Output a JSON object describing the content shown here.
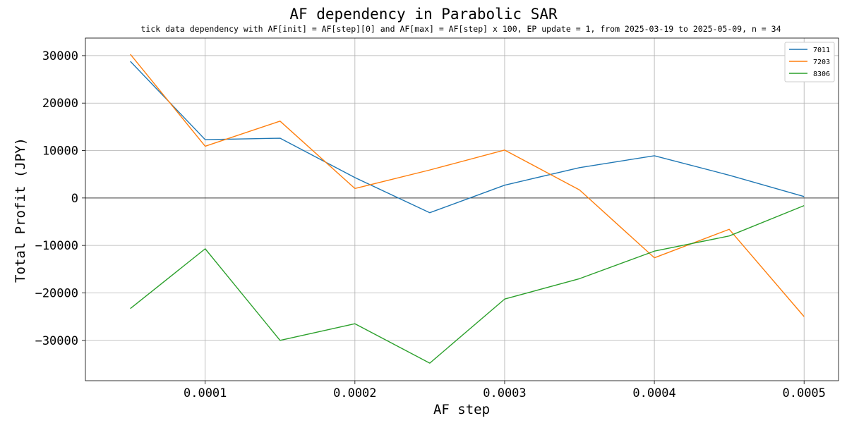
{
  "chart_data": {
    "type": "line",
    "title": "AF dependency in Parabolic SAR",
    "subtitle": "tick data dependency with AF[init] = AF[step][0] and AF[max] = AF[step] x 100, EP update = 1, from 2025-03-19 to 2025-05-09, n = 34",
    "xlabel": "AF step",
    "ylabel": "Total Profit (JPY)",
    "x": [
      5e-05,
      0.0001,
      0.00015,
      0.0002,
      0.00025,
      0.0003,
      0.00035,
      0.0004,
      0.00045,
      0.0005
    ],
    "x_ticks": [
      "0.0001",
      "0.0002",
      "0.0003",
      "0.0004",
      "0.0005"
    ],
    "y_ticks": [
      "30000",
      "20000",
      "10000",
      "0",
      "−10000",
      "−20000",
      "−30000"
    ],
    "xlim": [
      2e-05,
      0.000523
    ],
    "ylim": [
      -38500,
      33700
    ],
    "grid": true,
    "zero_line": true,
    "legend_position": "top-right",
    "series": [
      {
        "name": "7011",
        "color": "#1f77b4",
        "values": [
          28800,
          12300,
          12600,
          4300,
          -3100,
          2700,
          6400,
          8900,
          4800,
          300
        ]
      },
      {
        "name": "7203",
        "color": "#ff7f0e",
        "values": [
          30300,
          10900,
          16200,
          2000,
          5900,
          10100,
          1700,
          -12600,
          -6600,
          -25000
        ]
      },
      {
        "name": "8306",
        "color": "#2ca02c",
        "values": [
          -23300,
          -10700,
          -30000,
          -26500,
          -34800,
          -21300,
          -17000,
          -11200,
          -8000,
          -1600
        ]
      }
    ]
  }
}
